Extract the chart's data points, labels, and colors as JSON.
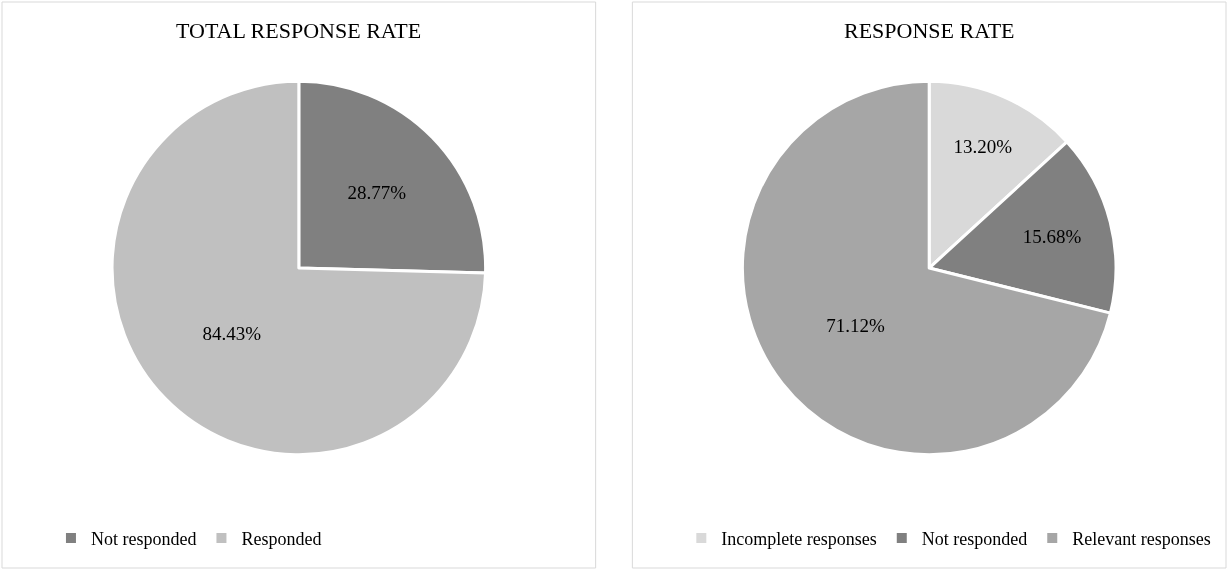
{
  "chart_data": [
    {
      "type": "pie",
      "title": "TOTAL RESPONSE RATE",
      "categories": [
        "Not responded",
        "Responded"
      ],
      "values": [
        28.77,
        84.43
      ],
      "colors": [
        "#808080",
        "#c0c0c0"
      ],
      "value_labels": [
        "28.77%",
        "84.43%"
      ],
      "legend": "bottom"
    },
    {
      "type": "pie",
      "title": "RESPONSE RATE",
      "categories": [
        "Incomplete responses",
        "Not responded",
        "Relevant responses"
      ],
      "values": [
        13.2,
        15.68,
        71.12
      ],
      "colors": [
        "#d9d9d9",
        "#808080",
        "#a6a6a6"
      ],
      "value_labels": [
        "13.20%",
        "15.68%",
        "71.12%"
      ],
      "legend": "bottom"
    }
  ]
}
